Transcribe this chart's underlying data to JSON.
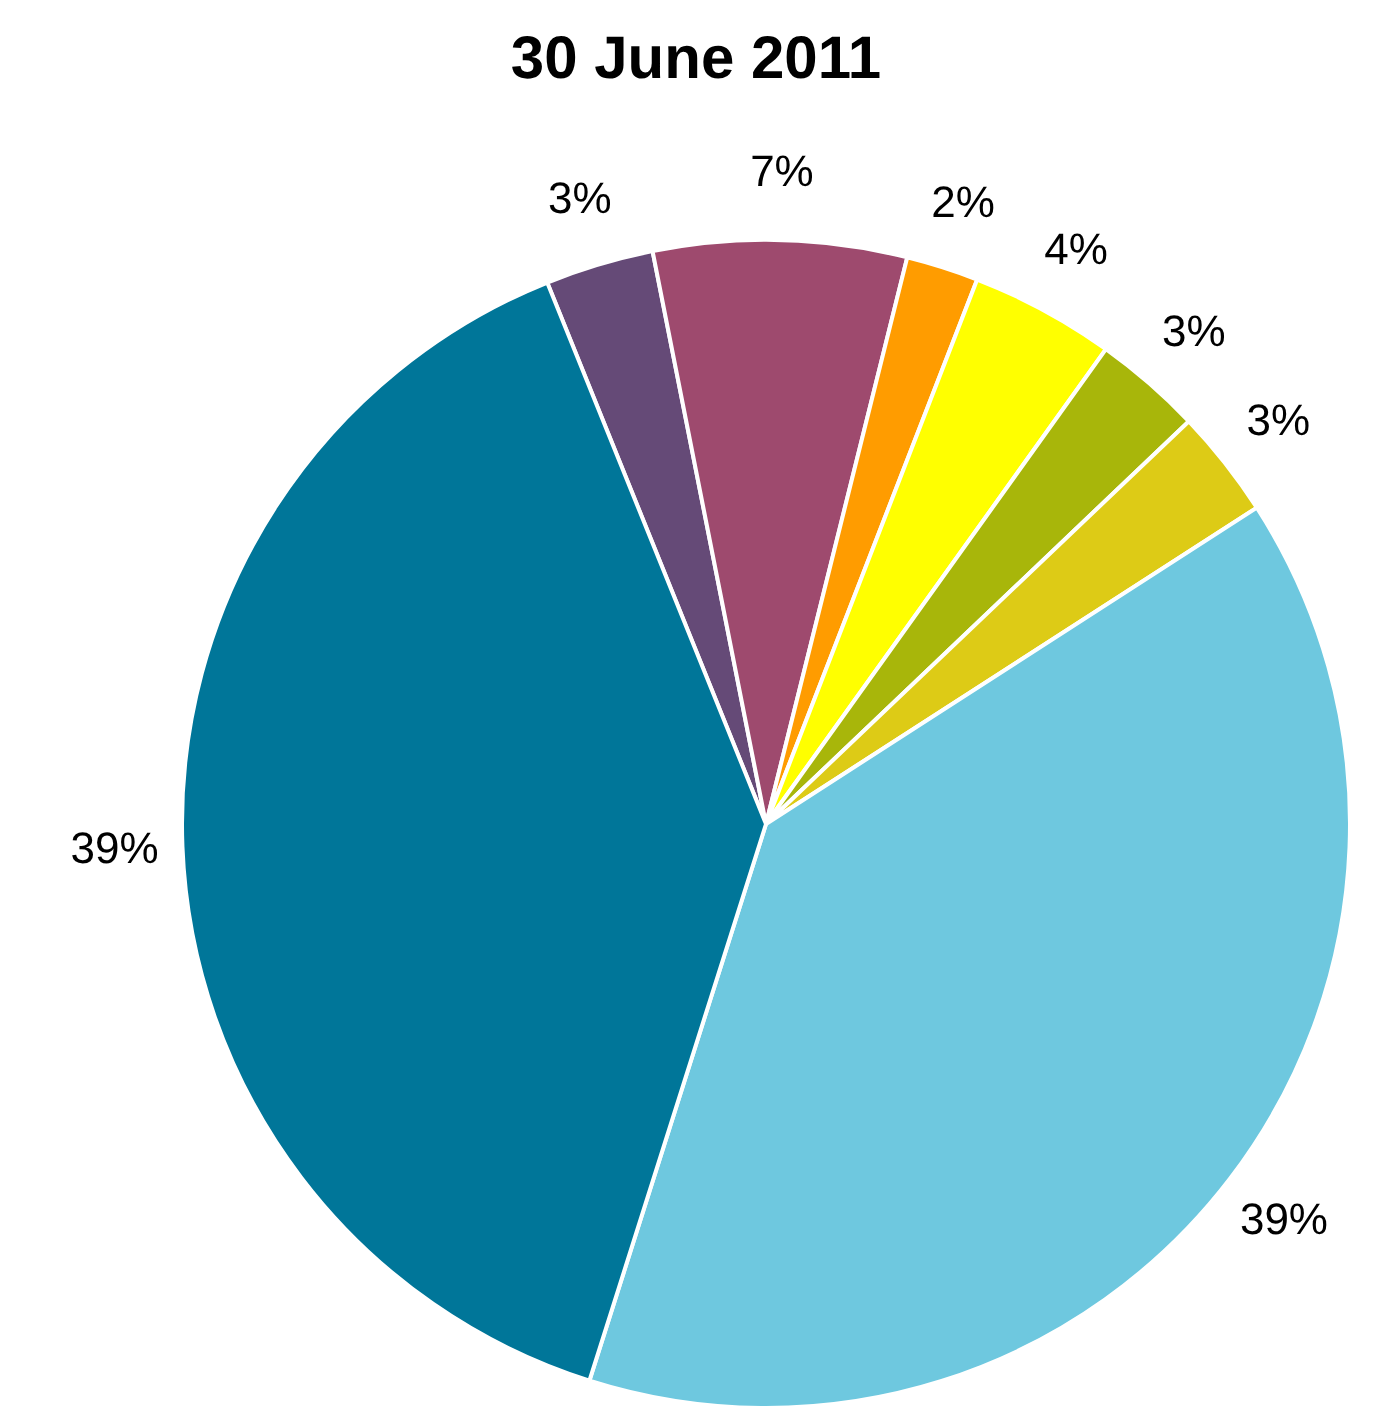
{
  "chart_data": {
    "type": "pie",
    "title": "30 June 2011",
    "categories": [
      null,
      null,
      null,
      null,
      null,
      null,
      null,
      null
    ],
    "values": [
      3,
      7,
      2,
      4,
      3,
      3,
      39,
      39
    ],
    "colors": [
      "#654a77",
      "#9e4a6e",
      "#ff9c00",
      "#ffff00",
      "#a8b60a",
      "#ddcb16",
      "#6ec8df",
      "#007699"
    ],
    "value_labels": [
      "3%",
      "7%",
      "2%",
      "4%",
      "3%",
      "3%",
      "39%",
      "39%"
    ],
    "legend": false
  }
}
